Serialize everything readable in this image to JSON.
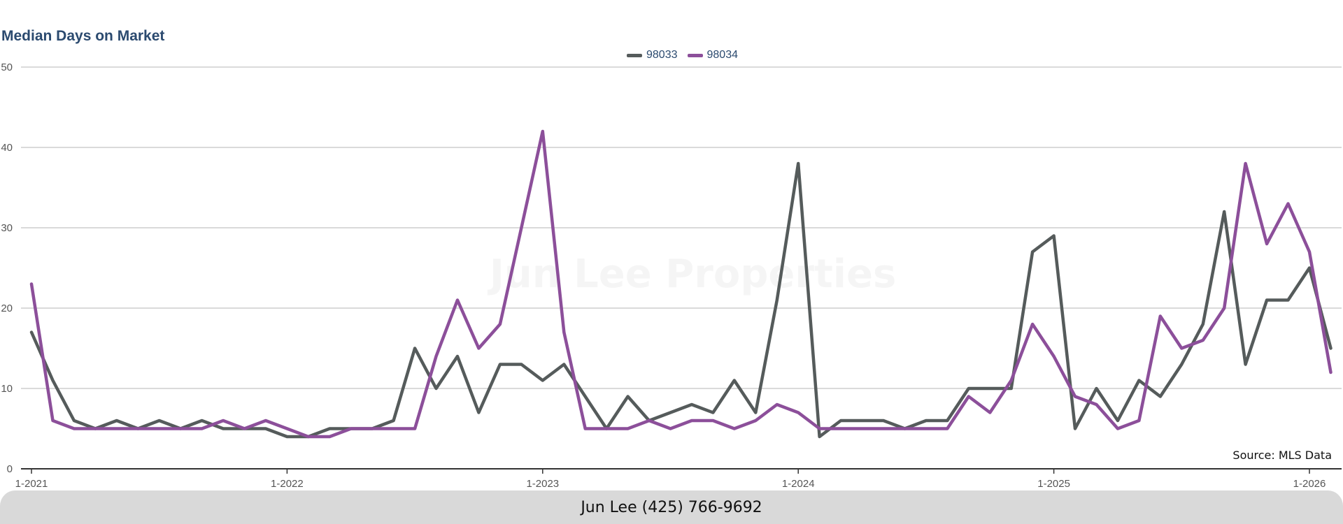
{
  "chart_data": {
    "type": "line",
    "title": "Median Days on Market",
    "ylim": [
      0,
      50
    ],
    "yticks": [
      0,
      10,
      20,
      30,
      40,
      50
    ],
    "xticks": [
      {
        "label": "1-2021",
        "index": 0
      },
      {
        "label": "1-2022",
        "index": 12
      },
      {
        "label": "1-2023",
        "index": 24
      },
      {
        "label": "1-2024",
        "index": 36
      },
      {
        "label": "1-2025",
        "index": 48
      },
      {
        "label": "1-2026",
        "index": 60
      }
    ],
    "grid": true,
    "legend_position": "top-center",
    "x": [
      "1-2021",
      "2-2021",
      "3-2021",
      "4-2021",
      "5-2021",
      "6-2021",
      "7-2021",
      "8-2021",
      "9-2021",
      "10-2021",
      "11-2021",
      "12-2021",
      "1-2022",
      "2-2022",
      "3-2022",
      "4-2022",
      "5-2022",
      "6-2022",
      "7-2022",
      "8-2022",
      "9-2022",
      "10-2022",
      "11-2022",
      "12-2022",
      "1-2023",
      "2-2023",
      "3-2023",
      "4-2023",
      "5-2023",
      "6-2023",
      "7-2023",
      "8-2023",
      "9-2023",
      "10-2023",
      "11-2023",
      "12-2023",
      "1-2024",
      "2-2024",
      "3-2024",
      "4-2024",
      "5-2024",
      "6-2024",
      "7-2024",
      "8-2024",
      "9-2024",
      "10-2024",
      "11-2024",
      "12-2024",
      "1-2025",
      "2-2025",
      "3-2025",
      "4-2025",
      "5-2025",
      "6-2025",
      "7-2025",
      "8-2025",
      "9-2025",
      "10-2025",
      "11-2025",
      "12-2025",
      "1-2026",
      "2-2026"
    ],
    "series": [
      {
        "name": "98033",
        "color": "#555b5b",
        "values": [
          17,
          11,
          6,
          5,
          6,
          5,
          6,
          5,
          6,
          5,
          5,
          5,
          4,
          4,
          5,
          5,
          5,
          6,
          15,
          10,
          14,
          7,
          13,
          13,
          11,
          13,
          9,
          5,
          9,
          6,
          7,
          8,
          7,
          11,
          7,
          21,
          38,
          4,
          6,
          6,
          6,
          5,
          6,
          6,
          10,
          10,
          10,
          27,
          29,
          5,
          10,
          6,
          11,
          9,
          13,
          18,
          32,
          13,
          21,
          21,
          25,
          15
        ]
      },
      {
        "name": "98034",
        "color": "#8c4f9a",
        "values": [
          23,
          6,
          5,
          5,
          5,
          5,
          5,
          5,
          5,
          6,
          5,
          6,
          5,
          4,
          4,
          5,
          5,
          5,
          5,
          14,
          21,
          15,
          18,
          30,
          42,
          17,
          5,
          5,
          5,
          6,
          5,
          6,
          6,
          5,
          6,
          8,
          7,
          5,
          5,
          5,
          5,
          5,
          5,
          5,
          9,
          7,
          11,
          18,
          14,
          9,
          8,
          5,
          6,
          19,
          15,
          16,
          20,
          38,
          28,
          33,
          27,
          12
        ]
      }
    ]
  },
  "source": "Source: MLS Data",
  "watermark": "Jun Lee Properties",
  "footer": "Jun Lee (425) 766-9692"
}
